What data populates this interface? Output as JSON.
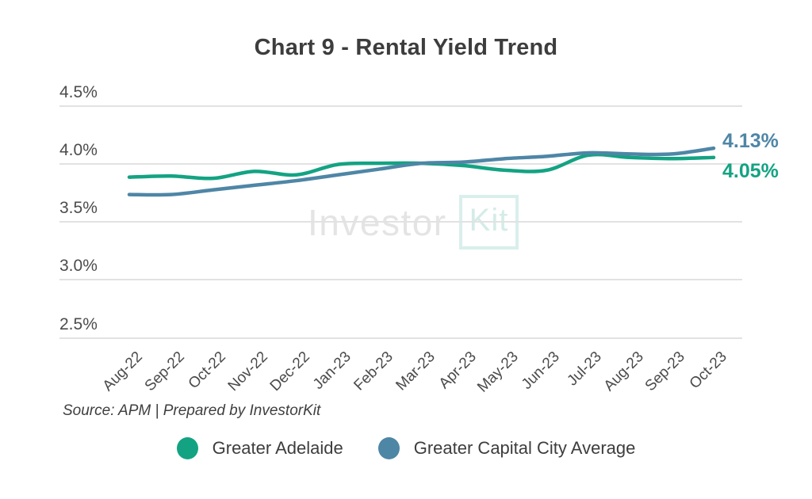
{
  "title": "Chart 9 - Rental Yield Trend",
  "watermark": {
    "text_gray": "Investor",
    "text_teal": "Kit"
  },
  "source": {
    "text": "Source: APM | Prepared by InvestorKit"
  },
  "colors": {
    "adelaide": "#13a383",
    "capital": "#4e86a6",
    "grid": "#e2e2e2",
    "title_text": "#3d3d3d"
  },
  "chart_data": {
    "type": "line",
    "title": "Chart 9 - Rental Yield Trend",
    "xlabel": "",
    "ylabel": "",
    "ylim": [
      2.5,
      4.5
    ],
    "grid": true,
    "legend_position": "bottom",
    "categories": [
      "Aug-22",
      "Sep-22",
      "Oct-22",
      "Nov-22",
      "Dec-22",
      "Jan-23",
      "Feb-23",
      "Mar-23",
      "Apr-23",
      "May-23",
      "Jun-23",
      "Jul-23",
      "Aug-23",
      "Sep-23",
      "Oct-23"
    ],
    "y_ticks": [
      {
        "label": "4.5%",
        "value": 4.5
      },
      {
        "label": "4.0%",
        "value": 4.0
      },
      {
        "label": "3.5%",
        "value": 3.5
      },
      {
        "label": "3.0%",
        "value": 3.0
      },
      {
        "label": "2.5%",
        "value": 2.5
      }
    ],
    "series": [
      {
        "name": "Greater Adelaide",
        "color": "#13a383",
        "end_label": "4.05%",
        "values": [
          3.88,
          3.89,
          3.87,
          3.93,
          3.9,
          3.99,
          4.0,
          4.0,
          3.98,
          3.94,
          3.94,
          4.07,
          4.05,
          4.04,
          4.05
        ]
      },
      {
        "name": "Greater Capital City Average",
        "color": "#4e86a6",
        "end_label": "4.13%",
        "values": [
          3.73,
          3.73,
          3.77,
          3.81,
          3.85,
          3.9,
          3.95,
          4.0,
          4.01,
          4.04,
          4.06,
          4.09,
          4.08,
          4.08,
          4.13
        ]
      }
    ]
  }
}
